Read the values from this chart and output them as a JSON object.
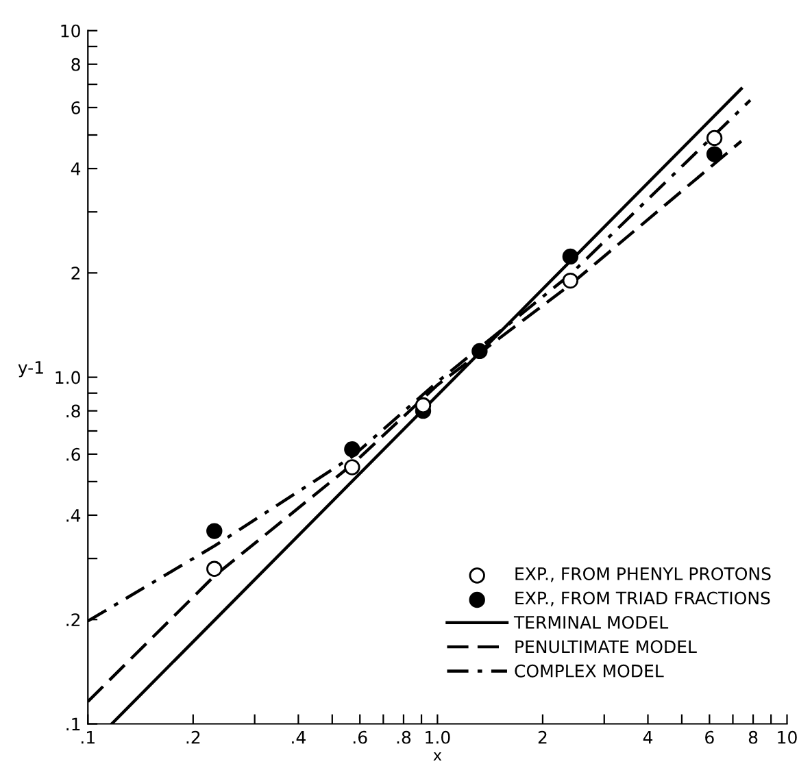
{
  "chart_data": {
    "type": "scatter",
    "xlabel": "x",
    "ylabel": "y-1",
    "log": "xy",
    "xlim": [
      0.1,
      10
    ],
    "ylim": [
      0.1,
      10
    ],
    "xticks": [
      {
        "value": 0.1,
        "label": ".1"
      },
      {
        "value": 0.2,
        "label": ".2"
      },
      {
        "value": 0.3,
        "label": null
      },
      {
        "value": 0.4,
        "label": ".4"
      },
      {
        "value": 0.5,
        "label": null
      },
      {
        "value": 0.6,
        "label": ".6"
      },
      {
        "value": 0.7,
        "label": null
      },
      {
        "value": 0.8,
        "label": ".8"
      },
      {
        "value": 0.9,
        "label": null
      },
      {
        "value": 1,
        "label": "1.0"
      },
      2,
      {
        "value": 3,
        "label": null
      },
      4,
      {
        "value": 5,
        "label": null
      },
      6,
      {
        "value": 7,
        "label": null
      },
      8,
      {
        "value": 9,
        "label": null
      },
      10
    ],
    "yticks": [
      {
        "value": 0.1,
        "label": ".1"
      },
      {
        "value": 0.2,
        "label": ".2"
      },
      {
        "value": 0.3,
        "label": null
      },
      {
        "value": 0.4,
        "label": ".4"
      },
      {
        "value": 0.5,
        "label": null
      },
      {
        "value": 0.6,
        "label": ".6"
      },
      {
        "value": 0.7,
        "label": null
      },
      {
        "value": 0.8,
        "label": ".8"
      },
      {
        "value": 0.9,
        "label": null
      },
      {
        "value": 1,
        "label": "1.0"
      },
      2,
      {
        "value": 3,
        "label": null
      },
      4,
      {
        "value": 5,
        "label": null
      },
      6,
      {
        "value": 7,
        "label": null
      },
      8,
      {
        "value": 9,
        "label": null
      },
      10
    ],
    "grid": false,
    "legend": "bottom right",
    "series": [
      {
        "name": "EXP., FROM PHENYL PROTONS",
        "marker": "circle",
        "color": "#ffffff",
        "x": [
          0.23,
          0.57,
          0.91,
          2.4,
          6.2
        ],
        "values": [
          0.28,
          0.55,
          0.83,
          1.9,
          4.9
        ]
      },
      {
        "name": "EXP., FROM TRIAD FRACTIONS",
        "marker": "circle",
        "color": "#000000",
        "x": [
          0.23,
          0.57,
          0.91,
          1.32,
          2.4,
          6.2
        ],
        "values": [
          0.36,
          0.62,
          0.8,
          1.19,
          2.23,
          4.4
        ]
      },
      {
        "name": "TERMINAL MODEL",
        "type": "line",
        "line_style": "solid",
        "color": "#000000",
        "x": [
          0.117,
          7.4
        ],
        "values": [
          0.1,
          6.8
        ]
      },
      {
        "name": "PENULTIMATE MODEL",
        "type": "line",
        "line_style": "dashed",
        "color": "#000000",
        "x": [
          0.1,
          0.23,
          0.57,
          1.0,
          2.4,
          7.4
        ],
        "values": [
          0.116,
          0.267,
          0.56,
          0.95,
          1.85,
          4.8
        ]
      },
      {
        "name": "COMPLEX MODEL",
        "type": "line",
        "line_style": "dashdot",
        "color": "#000000",
        "x": [
          0.1,
          0.23,
          0.57,
          1.0,
          2.4,
          7.85
        ],
        "values": [
          0.198,
          0.326,
          0.59,
          0.97,
          1.98,
          6.3
        ]
      }
    ]
  }
}
